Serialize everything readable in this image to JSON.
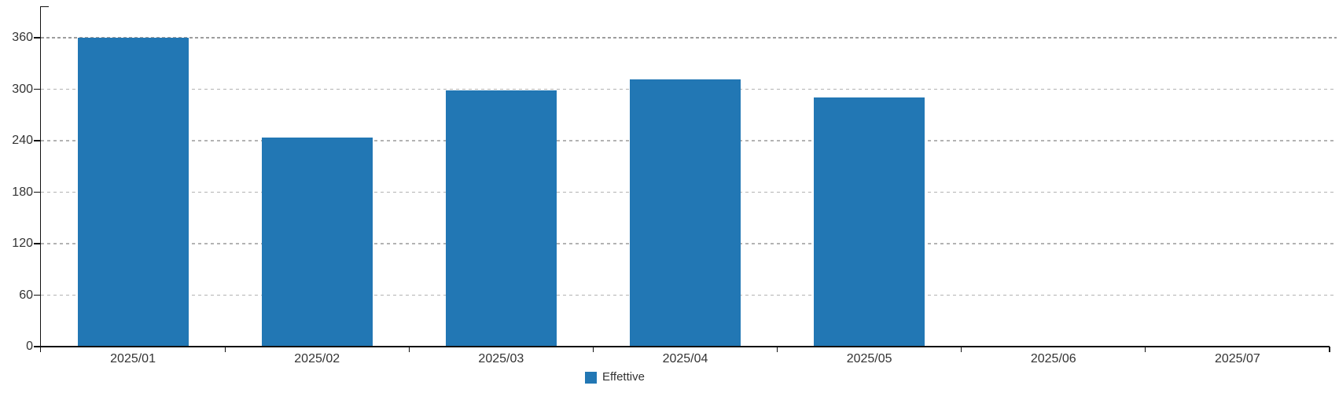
{
  "chart_data": {
    "type": "bar",
    "title": "",
    "xlabel": "",
    "ylabel": "",
    "categories": [
      "2025/01",
      "2025/02",
      "2025/03",
      "2025/04",
      "2025/05",
      "2025/06",
      "2025/07"
    ],
    "series": [
      {
        "name": "Effettive",
        "color": "#2277b4",
        "values": [
          360,
          244,
          299,
          311,
          290,
          0,
          0
        ]
      }
    ],
    "yticks": [
      0,
      60,
      120,
      180,
      240,
      300,
      360
    ],
    "ylim": [
      0,
      396
    ],
    "grid": "horizontal-dashed",
    "legend_position": "bottom-center"
  },
  "colors": {
    "bar": "#2277b4",
    "grid_line": "#b3b3b3",
    "grid_line_top": "#9d9d9d",
    "axis": "#111111",
    "tick_text": "#333333"
  }
}
